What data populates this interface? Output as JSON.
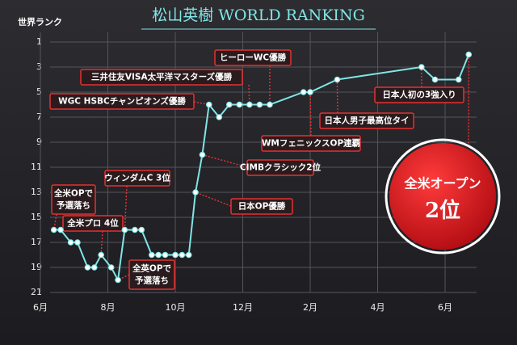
{
  "chart_data": {
    "type": "line",
    "title": "松山英樹 WORLD RANKING",
    "y_label": "世界ランク",
    "x": [
      0.4,
      0.6,
      0.9,
      1.1,
      1.4,
      1.6,
      1.8,
      2.1,
      2.3,
      2.5,
      2.8,
      3.0,
      3.3,
      3.5,
      3.7,
      4.0,
      4.2,
      4.4,
      4.6,
      4.8,
      5.0,
      5.3,
      5.6,
      5.9,
      6.2,
      6.5,
      6.8,
      7.8,
      8.0,
      8.8,
      11.3,
      11.7,
      12.4,
      12.7
    ],
    "series": [
      {
        "name": "松山英樹",
        "color": "#7fe6e6",
        "values": [
          16,
          16,
          17,
          17,
          19,
          19,
          18,
          19,
          20,
          16,
          16,
          16,
          18,
          18,
          18,
          18,
          18,
          18,
          13,
          10,
          6,
          7,
          6,
          6,
          6,
          6,
          6,
          5,
          5,
          4,
          3,
          4,
          4,
          2
        ]
      }
    ],
    "xlim": [
      0,
      12.9
    ],
    "xticks": [
      {
        "value": 0,
        "label": "6月"
      },
      {
        "value": 2,
        "label": "8月"
      },
      {
        "value": 4,
        "label": "10月"
      },
      {
        "value": 6,
        "label": "12月"
      },
      {
        "value": 8,
        "label": "2月"
      },
      {
        "value": 10,
        "label": "4月"
      },
      {
        "value": 12,
        "label": "6月"
      }
    ],
    "ylim": [
      21,
      1
    ],
    "yticks": [
      1,
      3,
      5,
      7,
      9,
      11,
      13,
      15,
      17,
      19,
      21
    ],
    "grid": true,
    "annotations": [
      [
        "全米OPで",
        "予選落ち"
      ],
      [
        "全米プロ 4位"
      ],
      [
        "ウィンダムC 3位"
      ],
      [
        "全英OPで",
        "予選落ち"
      ],
      [
        "WGC HSBCチャンピオンズ優勝"
      ],
      [
        "三井住友VISA太平洋マスターズ優勝"
      ],
      [
        "ヒーローWC優勝"
      ],
      [
        "CIMBクラシック2位"
      ],
      [
        "日本OP優勝"
      ],
      [
        "WMフェニックスOP連覇"
      ],
      [
        "日本人男子最高位タイ"
      ],
      [
        "日本人初の3強入り"
      ],
      [
        "全米オープン",
        "2位"
      ]
    ]
  }
}
